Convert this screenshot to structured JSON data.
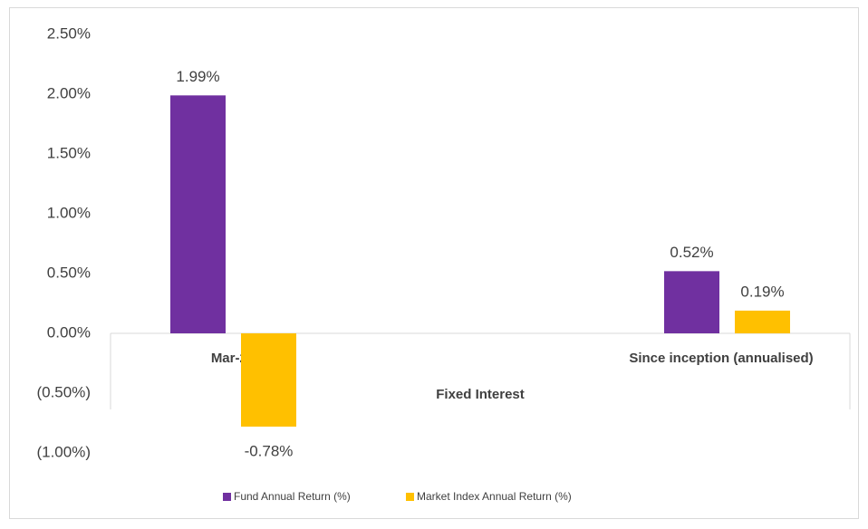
{
  "chart_data": {
    "type": "bar",
    "categories": [
      "Mar-21",
      "Since inception (annualised)"
    ],
    "group_label": "Fixed Interest",
    "series": [
      {
        "name": "Fund Annual Return (%)",
        "color": "#7030a0",
        "values": [
          1.99,
          0.52
        ],
        "value_labels": [
          "1.99%",
          "0.52%"
        ]
      },
      {
        "name": "Market Index Annual Return (%)",
        "color": "#ffc000",
        "values": [
          -0.78,
          0.19
        ],
        "value_labels": [
          "-0.78%",
          "0.19%"
        ]
      }
    ],
    "ylim": [
      -1,
      2.5
    ],
    "yticks": [
      {
        "value": -1,
        "label": "(1.00%)"
      },
      {
        "value": -0.5,
        "label": "(0.50%)"
      },
      {
        "value": 0,
        "label": "0.00%"
      },
      {
        "value": 0.5,
        "label": "0.50%"
      },
      {
        "value": 1,
        "label": "1.00%"
      },
      {
        "value": 1.5,
        "label": "1.50%"
      },
      {
        "value": 2,
        "label": "2.00%"
      },
      {
        "value": 2.5,
        "label": "2.50%"
      }
    ],
    "grid": false,
    "legend": "bottom"
  }
}
